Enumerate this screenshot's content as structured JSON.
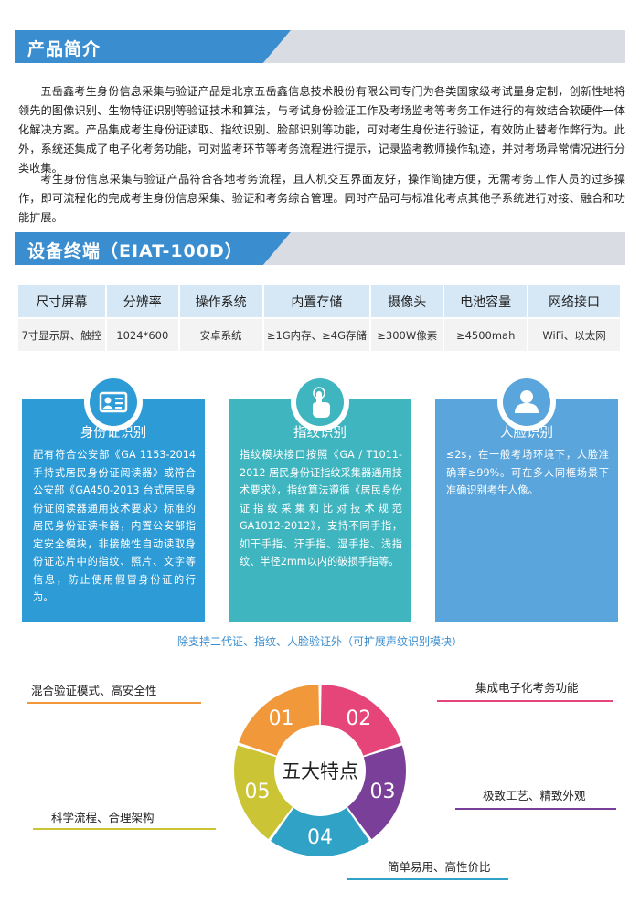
{
  "intro": {
    "title": "产品简介",
    "para1": "五岳鑫考生身份信息采集与验证产品是北京五岳鑫信息技术股份有限公司专门为各类国家级考试量身定制，创新性地将领先的图像识别、生物特征识别等验证技术和算法，与考试身份验证工作及考场监考等考务工作进行的有效结合软硬件一体化解决方案。产品集成考生身份证读取、指纹识别、脸部识别等功能，可对考生身份进行验证，有效防止替考作弊行为。此外，系统还集成了电子化考务功能，可对监考环节等考务流程进行提示，记录监考教师操作轨迹，并对考场异常情况进行分类收集。",
    "para2": "考生身份信息采集与验证产品符合各地考务流程，且人机交互界面友好，操作简捷方便，无需考务工作人员的过多操作，即可流程化的完成考生身份信息采集、验证和考务综合管理。同时产品可与标准化考点其他子系统进行对接、融合和功能扩展。"
  },
  "device": {
    "title": "设备终端（EIAT-100D）",
    "headers": [
      "尺寸屏幕",
      "分辨率",
      "操作系统",
      "内置存储",
      "摄像头",
      "电池容量",
      "网络接口"
    ],
    "values": [
      "7寸显示屏、触控",
      "1024*600",
      "安卓系统",
      "≥1G内存、≥4G存储",
      "≥300W像素",
      "≥4500mah",
      "WiFi、以太网"
    ]
  },
  "cards": [
    {
      "icon": "id-card-icon",
      "title": "身份证识别",
      "body": "配有符合公安部《GA 1153-2014 手持式居民身份证阅读器》或符合公安部《GA450-2013 台式居民身份证阅读器通用技术要求》标准的居民身份证读卡器，内置公安部指定安全模块，非接触性自动读取身份证芯片中的指纹、照片、文字等信息，防止使用假冒身份证的行为。",
      "color": "#2c9bd6"
    },
    {
      "icon": "fingerprint-touch-icon",
      "title": "指纹识别",
      "body": "指纹模块接口按照《GA / T1011-2012 居民身份证指纹采集器通用技术要求》，指纹算法遵循《居民身份证指纹采集和比对技术规范GA1012-2012》，支持不同手指，如干手指、汗手指、湿手指、浅指纹、半径2mm以内的破损手指等。",
      "color": "#3fb5c0"
    },
    {
      "icon": "person-icon",
      "title": "人脸识别",
      "body": "≤2s，在一般考场环境下，人脸准确率≥99%。可在多人同框场景下准确识别考生人像。",
      "color": "#5aa5db"
    }
  ],
  "note": "除支持二代证、指纹、人脸验证外（可扩展声纹识别模块）",
  "features": {
    "center": "五大特点",
    "segments": [
      {
        "num": "01",
        "label": "混合验证模式、高安全性",
        "color": "#f0983a"
      },
      {
        "num": "02",
        "label": "集成电子化考务功能",
        "color": "#e6457a"
      },
      {
        "num": "03",
        "label": "极致工艺、精致外观",
        "color": "#7a3f98"
      },
      {
        "num": "04",
        "label": "简单易用、高性价比",
        "color": "#2fa2c6"
      },
      {
        "num": "05",
        "label": "科学流程、合理架构",
        "color": "#cbc435"
      }
    ]
  }
}
